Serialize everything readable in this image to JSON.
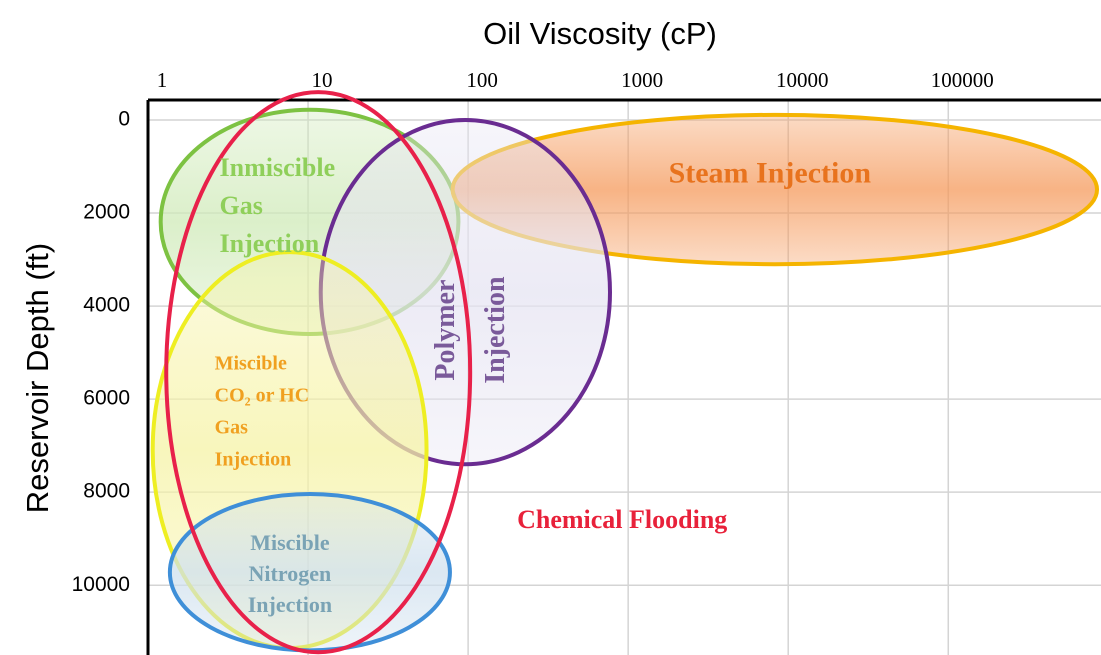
{
  "chart_data": {
    "type": "ellipse",
    "x_label": "Oil Viscosity (cP)",
    "y_label": "Reservoir Depth (ft)",
    "x_log": true,
    "y_inverted": true,
    "grid": true,
    "xlim": [
      1,
      900000
    ],
    "xticks": [
      1,
      10,
      100,
      1000,
      10000,
      100000
    ],
    "ylim": [
      -430,
      11500
    ],
    "yticks": [
      0,
      2000,
      4000,
      6000,
      8000,
      10000
    ],
    "regions": [
      {
        "label": [
          "Inmiscible",
          "Gas",
          "Injection"
        ],
        "color": "#7dc242",
        "fill": "#cfeab8",
        "label_color": "#8fcf5a",
        "viscosity": [
          1.2,
          87
        ],
        "depth": [
          -220,
          4600
        ]
      },
      {
        "label": [
          "Steam Injection"
        ],
        "color": "#f5b400",
        "fill": "#f59a5c",
        "label_color": "#e8731e",
        "viscosity": [
          80,
          850000
        ],
        "depth": [
          -110,
          3100
        ]
      },
      {
        "label": [
          "Polymer",
          "Injection"
        ],
        "color": "#6a2c91",
        "fill": "#e6e4f2",
        "label_color": "#7a5a9a",
        "viscosity": [
          12,
          770
        ],
        "depth": [
          0,
          7400
        ]
      },
      {
        "label": [
          "Miscible",
          "CO₂ or HC",
          "Gas",
          "Injection"
        ],
        "color": "#eeee22",
        "fill": "#f6f3a6",
        "label_color": "#f0a020",
        "viscosity": [
          1.07,
          55
        ],
        "depth": [
          2840,
          11350
        ]
      },
      {
        "label": [
          "Miscible",
          "Nitrogen",
          "Injection"
        ],
        "color": "#3f8fd8",
        "fill": "#cfe0ee",
        "label_color": "#7aa3b5",
        "viscosity": [
          1.37,
          77
        ],
        "depth": [
          8040,
          11400
        ]
      },
      {
        "label": [
          "Chemical Flooding"
        ],
        "color": "#e8214a",
        "fill": "none",
        "label_color": "#e8213a",
        "viscosity": [
          1.3,
          103
        ],
        "depth": [
          -600,
          11440
        ]
      }
    ]
  }
}
